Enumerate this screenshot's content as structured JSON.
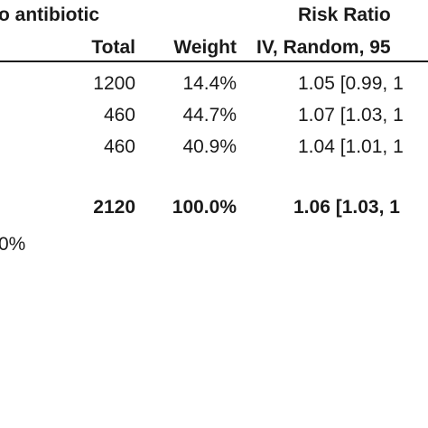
{
  "header": {
    "group_label": "o antibiotic",
    "effect_title": "Risk Ratio",
    "col_total": "Total",
    "col_weight": "Weight",
    "col_method": "IV, Random, 95"
  },
  "rows": [
    {
      "total": "1200",
      "weight": "14.4%",
      "rr": "1.05 [0.99, 1"
    },
    {
      "total": "460",
      "weight": "44.7%",
      "rr": "1.07 [1.03, 1"
    },
    {
      "total": "460",
      "weight": "40.9%",
      "rr": "1.04 [1.01, 1"
    }
  ],
  "summary": {
    "total": "2120",
    "weight": "100.0%",
    "rr": "1.06 [1.03, 1"
  },
  "footer_fragment": "0%"
}
